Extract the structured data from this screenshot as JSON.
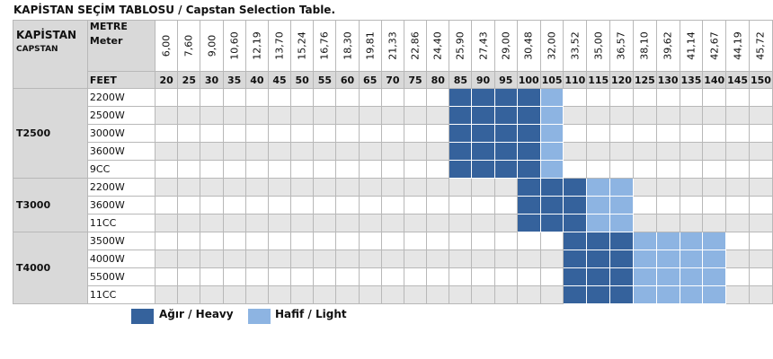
{
  "title": "KAPİSTAN SEÇİM TABLOSU / Capstan Selection Table.",
  "header": {
    "capstan_tr": "KAPİSTAN",
    "capstan_en": "CAPSTAN",
    "metre_label": "METRE",
    "meter_label": "Meter",
    "feet_label": "FEET"
  },
  "meters": [
    "6,00",
    "7,60",
    "9,00",
    "10,60",
    "12,19",
    "13,70",
    "15,24",
    "16,76",
    "18,30",
    "19,81",
    "21,33",
    "22,86",
    "24,40",
    "25,90",
    "27,43",
    "29,00",
    "30,48",
    "32,00",
    "33,52",
    "35,00",
    "36,57",
    "38,10",
    "39,62",
    "41,14",
    "42,67",
    "44,19",
    "45,72"
  ],
  "feet": [
    "20",
    "25",
    "30",
    "35",
    "40",
    "45",
    "50",
    "55",
    "60",
    "65",
    "70",
    "75",
    "80",
    "85",
    "90",
    "95",
    "100",
    "105",
    "110",
    "115",
    "120",
    "125",
    "130",
    "135",
    "140",
    "145",
    "150"
  ],
  "groups": [
    {
      "name": "T2500",
      "rows": [
        {
          "model": "2200W",
          "heavy": [
            13,
            16
          ],
          "light": [
            17,
            17
          ]
        },
        {
          "model": "2500W",
          "heavy": [
            13,
            16
          ],
          "light": [
            17,
            17
          ]
        },
        {
          "model": "3000W",
          "heavy": [
            13,
            16
          ],
          "light": [
            17,
            17
          ]
        },
        {
          "model": "3600W",
          "heavy": [
            13,
            16
          ],
          "light": [
            17,
            17
          ]
        },
        {
          "model": "9CC",
          "heavy": [
            13,
            16
          ],
          "light": [
            17,
            17
          ]
        }
      ]
    },
    {
      "name": "T3000",
      "rows": [
        {
          "model": "2200W",
          "heavy": [
            16,
            18
          ],
          "light": [
            19,
            20
          ]
        },
        {
          "model": "3600W",
          "heavy": [
            16,
            18
          ],
          "light": [
            19,
            20
          ]
        },
        {
          "model": "11CC",
          "heavy": [
            16,
            18
          ],
          "light": [
            19,
            20
          ]
        }
      ]
    },
    {
      "name": "T4000",
      "rows": [
        {
          "model": "3500W",
          "heavy": [
            18,
            20
          ],
          "light": [
            21,
            24
          ]
        },
        {
          "model": "4000W",
          "heavy": [
            18,
            20
          ],
          "light": [
            21,
            24
          ]
        },
        {
          "model": "5500W",
          "heavy": [
            18,
            20
          ],
          "light": [
            21,
            24
          ]
        },
        {
          "model": "11CC",
          "heavy": [
            18,
            20
          ],
          "light": [
            21,
            24
          ]
        }
      ]
    }
  ],
  "legend": {
    "heavy_label": "Ağır / Heavy",
    "light_label": "Hafif / Light",
    "heavy_color": "#35629c",
    "light_color": "#8db4e2"
  }
}
